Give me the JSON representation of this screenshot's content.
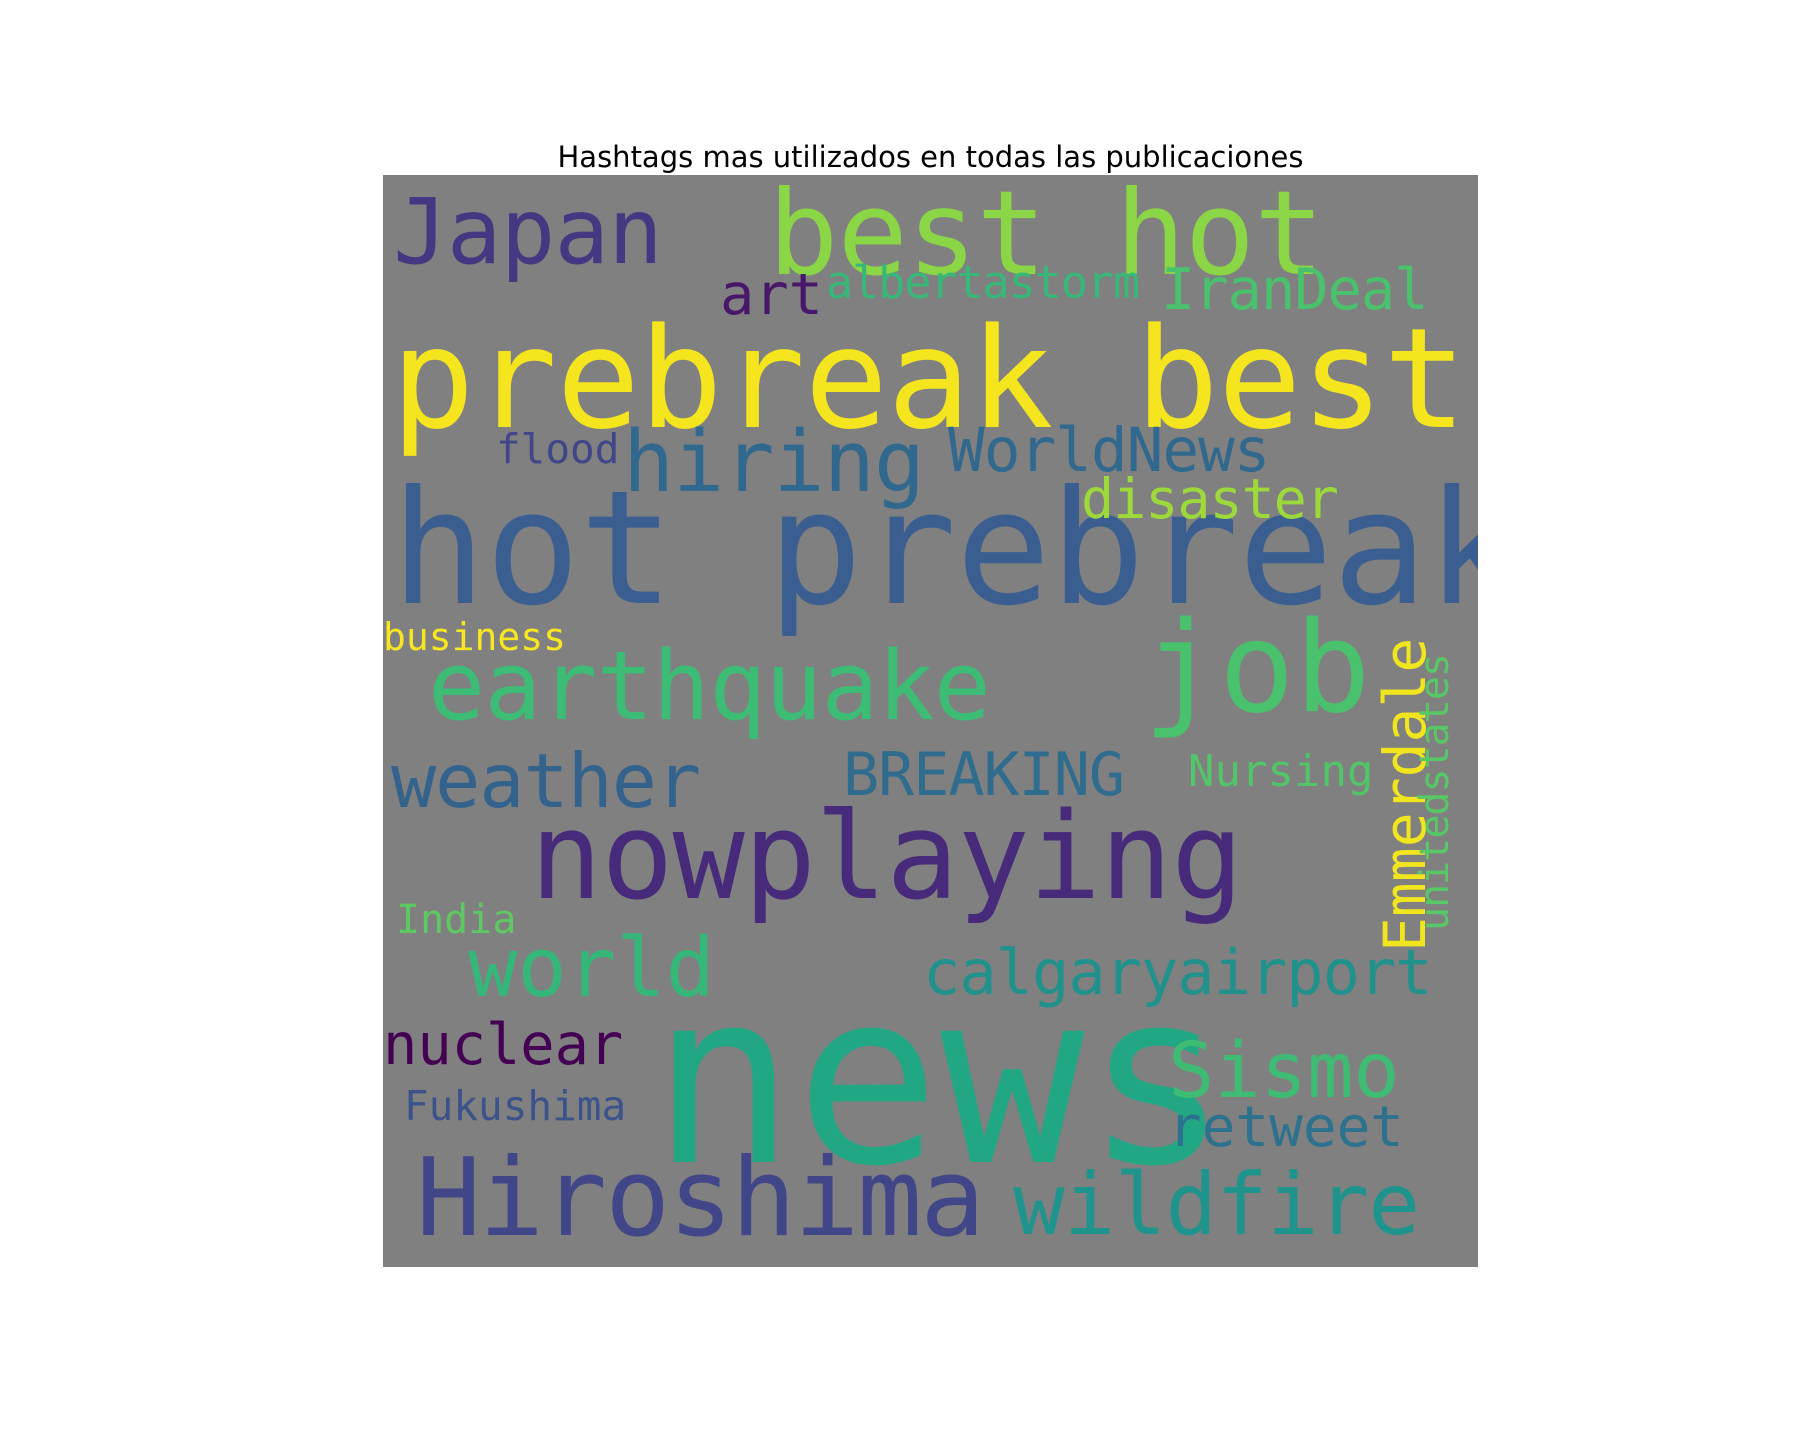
{
  "title": "Hashtags mas utilizados en todas las publicaciones",
  "background_color": "#808080",
  "colormap": "viridis",
  "words": [
    {
      "text": "news",
      "color": "#22a785",
      "orientation": "horizontal"
    },
    {
      "text": "hot prebreak",
      "color": "#3b5e91",
      "orientation": "horizontal"
    },
    {
      "text": "prebreak best",
      "color": "#f5e51f",
      "orientation": "horizontal"
    },
    {
      "text": "nowplaying",
      "color": "#472a7a",
      "orientation": "horizontal"
    },
    {
      "text": "best hot",
      "color": "#8bd646",
      "orientation": "horizontal"
    },
    {
      "text": "Japan",
      "color": "#453781",
      "orientation": "horizontal"
    },
    {
      "text": "earthquake",
      "color": "#3cbc74",
      "orientation": "horizontal"
    },
    {
      "text": "job",
      "color": "#4ac16d",
      "orientation": "horizontal"
    },
    {
      "text": "Hiroshima",
      "color": "#404688",
      "orientation": "horizontal"
    },
    {
      "text": "hiring",
      "color": "#31688e",
      "orientation": "horizontal"
    },
    {
      "text": "weather",
      "color": "#33638d",
      "orientation": "horizontal"
    },
    {
      "text": "wildfire",
      "color": "#1f948c",
      "orientation": "horizontal"
    },
    {
      "text": "world",
      "color": "#35b779",
      "orientation": "horizontal"
    },
    {
      "text": "Sismo",
      "color": "#3fbc73",
      "orientation": "horizontal"
    },
    {
      "text": "calgaryairport",
      "color": "#21918c",
      "orientation": "horizontal"
    },
    {
      "text": "WorldNews",
      "color": "#31688e",
      "orientation": "horizontal"
    },
    {
      "text": "BREAKING",
      "color": "#2f6c8e",
      "orientation": "horizontal"
    },
    {
      "text": "Emmerdale",
      "color": "#f1e51d",
      "orientation": "vertical"
    },
    {
      "text": "nuclear",
      "color": "#440154",
      "orientation": "horizontal"
    },
    {
      "text": "retweet",
      "color": "#2c728e",
      "orientation": "horizontal"
    },
    {
      "text": "IranDeal",
      "color": "#4ac16d",
      "orientation": "horizontal"
    },
    {
      "text": "disaster",
      "color": "#9dd93b",
      "orientation": "horizontal"
    },
    {
      "text": "art",
      "color": "#481769",
      "orientation": "horizontal"
    },
    {
      "text": "albertastorm",
      "color": "#37b878",
      "orientation": "horizontal"
    },
    {
      "text": "Nursing",
      "color": "#52c569",
      "orientation": "horizontal"
    },
    {
      "text": "unitedstates",
      "color": "#58c765",
      "orientation": "vertical"
    },
    {
      "text": "Fukushima",
      "color": "#3b528b",
      "orientation": "horizontal"
    },
    {
      "text": "flood",
      "color": "#404688",
      "orientation": "horizontal"
    },
    {
      "text": "business",
      "color": "#f8e621",
      "orientation": "horizontal"
    },
    {
      "text": "India",
      "color": "#5ec962",
      "orientation": "horizontal"
    }
  ]
}
